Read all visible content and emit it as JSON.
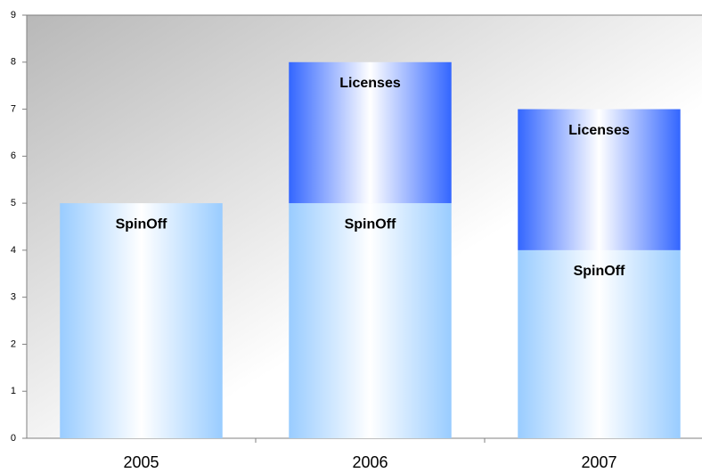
{
  "chart_data": {
    "type": "stacked_bar",
    "categories": [
      "2005",
      "2006",
      "2007"
    ],
    "series": [
      {
        "name": "SpinOff",
        "color": "#99ccff",
        "values": [
          5,
          5,
          4
        ]
      },
      {
        "name": "Licenses",
        "color": "#3366ff",
        "values": [
          null,
          3,
          3
        ]
      }
    ],
    "ylim": [
      0,
      9
    ],
    "yticks": [
      0,
      1,
      2,
      3,
      4,
      5,
      6,
      7,
      8,
      9
    ],
    "grid": false,
    "data_labels": "series_name"
  }
}
